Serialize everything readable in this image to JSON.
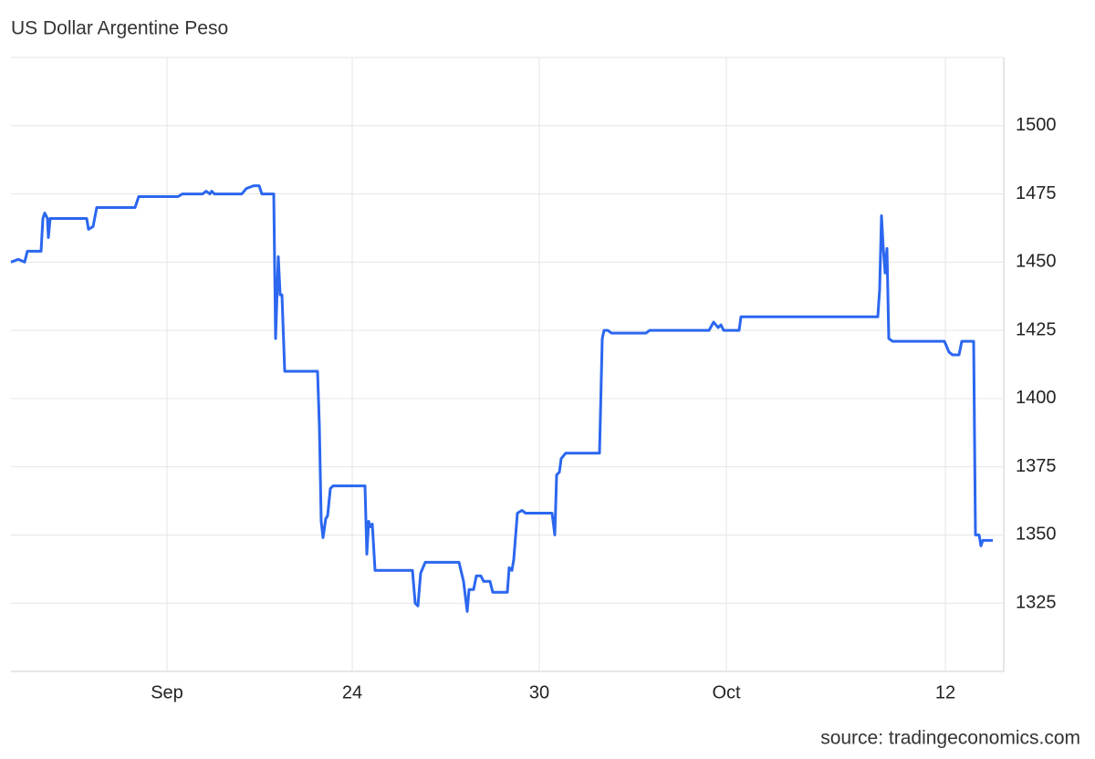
{
  "chart_data": {
    "type": "line",
    "title": "US Dollar Argentine Peso",
    "source": "source: tradingeconomics.com",
    "x": [
      0,
      0.8,
      1.5,
      1.8,
      3.3,
      3.5,
      3.7,
      4,
      4.1,
      4.3,
      8.3,
      8.5,
      9,
      9.4,
      13.6,
      14,
      18.3,
      18.8,
      21,
      21.4,
      21.8,
      22,
      22.3,
      23.8,
      25.3,
      25.8,
      26.6,
      27.2,
      27.5,
      28.8,
      29,
      29.3,
      29.5,
      29.7,
      30,
      33.6,
      33.8,
      34,
      34.2,
      34.5,
      34.7,
      35,
      35.3,
      38.8,
      39,
      39.2,
      39.4,
      39.6,
      39.9,
      44,
      44.3,
      44.6,
      44.9,
      45.4,
      49.1,
      49.6,
      50,
      50.2,
      50.7,
      51,
      51.5,
      51.8,
      52.5,
      52.8,
      54.4,
      54.6,
      54.9,
      55.1,
      55.5,
      56,
      56.4,
      59.3,
      59.6,
      59.8,
      60.1,
      60.3,
      60.8,
      64.5,
      64.8,
      65,
      65.4,
      65.8,
      69.6,
      70,
      74.8,
      76.5,
      77,
      77.5,
      77.8,
      78.1,
      79.8,
      80,
      95,
      95.2,
      95.4,
      95.6,
      95.8,
      96,
      96.2,
      96.6,
      102.3,
      102.8,
      103.2,
      103.9,
      104.2,
      105.5,
      105.7,
      106.1,
      106.3,
      106.5,
      107.6
    ],
    "values": [
      1450,
      1451,
      1450,
      1454,
      1454,
      1466,
      1468,
      1466,
      1459,
      1466,
      1466,
      1462,
      1463,
      1470,
      1470,
      1474,
      1474,
      1475,
      1475,
      1476,
      1475,
      1476,
      1475,
      1475,
      1475,
      1477,
      1478,
      1478,
      1475,
      1475,
      1422,
      1452,
      1438,
      1438,
      1410,
      1410,
      1390,
      1355,
      1349,
      1356,
      1357,
      1367,
      1368,
      1368,
      1343,
      1355,
      1353,
      1354,
      1337,
      1337,
      1325,
      1324,
      1336,
      1340,
      1340,
      1333,
      1322,
      1330,
      1330,
      1335,
      1335,
      1333,
      1333,
      1329,
      1329,
      1338,
      1337,
      1341,
      1358,
      1359,
      1358,
      1358,
      1350,
      1372,
      1373,
      1378,
      1380,
      1380,
      1422,
      1425,
      1425,
      1424,
      1424,
      1425,
      1425,
      1425,
      1428,
      1426,
      1427,
      1425,
      1425,
      1430,
      1430,
      1440,
      1467,
      1455,
      1446,
      1455,
      1422,
      1421,
      1421,
      1417,
      1416,
      1416,
      1421,
      1421,
      1350,
      1350,
      1346,
      1348,
      1348
    ],
    "color": "#2b67ef",
    "xlim": [
      0,
      108.8
    ],
    "xticks": [
      {
        "value": 17.1,
        "label": "Sep"
      },
      {
        "value": 37.4,
        "label": "24"
      },
      {
        "value": 57.9,
        "label": "30"
      },
      {
        "value": 78.4,
        "label": "Oct"
      },
      {
        "value": 102.4,
        "label": "12"
      }
    ],
    "ylim": [
      1300,
      1525
    ],
    "yticks": [
      1325,
      1350,
      1375,
      1400,
      1425,
      1450,
      1475,
      1500
    ],
    "grid": true
  }
}
